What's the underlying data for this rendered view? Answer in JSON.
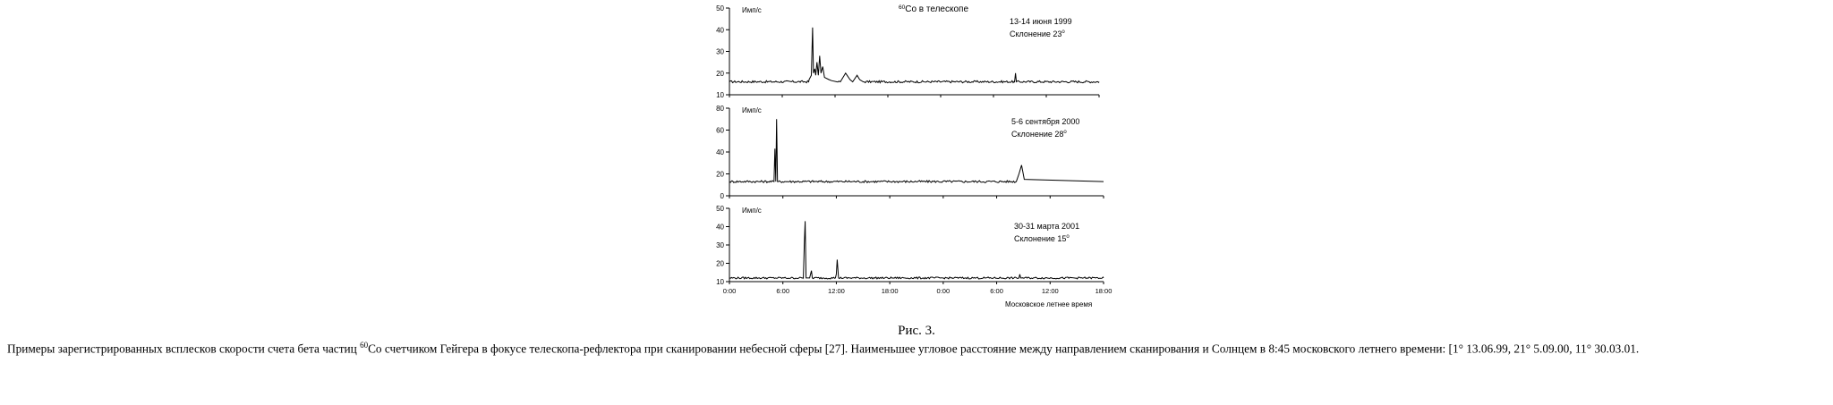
{
  "figure": {
    "super_title_sup": "60",
    "super_title": "Co в телескопе",
    "x_ticks": [
      "0:00",
      "6:00",
      "12:00",
      "18:00",
      "0:00",
      "6:00",
      "12:00",
      "18:00"
    ],
    "x_axis_label": "Московское летнее время",
    "caption_label": "Рис. 3.",
    "caption_before_sup": "Примеры зарегистрированных всплесков скорости счета бета частиц ",
    "caption_sup": "60",
    "caption_after_sup": "Co счетчиком Гейгера в фокусе телескопа-рефлектора при сканировании небесной сферы [27]. Наименьшее угловое расстояние между направлением сканирования и Солнцем в 8:45 московского летнего времени: [1° 13.06.99, 21° 5.09.00, 11° 30.03.01."
  },
  "chart_data": [
    {
      "type": "line",
      "ylabel": "Имп/с",
      "date_label": "13-14 июня 1999",
      "decl_label": "Склонение 23",
      "decl_sup": "o",
      "ylim": [
        10,
        50
      ],
      "yticks": [
        10,
        20,
        30,
        40,
        50
      ],
      "xlim": [
        0,
        42
      ],
      "baseline": 16,
      "series": [
        {
          "x": [
            0,
            9,
            9.05,
            9.3,
            9.45,
            9.55,
            9.7,
            9.8,
            9.95,
            10.1,
            10.25,
            10.4,
            10.6,
            10.8,
            11.3,
            11.6,
            12.2,
            12.6,
            13.2,
            13.7,
            14.0,
            14.5,
            14.8,
            15.2,
            32.4,
            32.5,
            32.6,
            42
          ],
          "y": [
            16,
            16,
            17,
            19,
            41,
            20,
            22,
            19,
            25,
            19,
            28,
            20,
            23,
            18,
            17,
            16.5,
            16,
            16,
            20,
            17,
            16,
            19,
            17,
            16,
            16,
            20,
            16,
            16
          ]
        }
      ]
    },
    {
      "type": "line",
      "ylabel": "Имп/с",
      "date_label": "5-6 сентября 2000",
      "decl_label": "Склонение 28",
      "decl_sup": "o",
      "ylim": [
        0,
        80
      ],
      "yticks": [
        0,
        20,
        40,
        60,
        80
      ],
      "xlim": [
        0,
        42
      ],
      "baseline": 13,
      "series": [
        {
          "x": [
            0,
            5.0,
            5.1,
            5.2,
            5.3,
            5.4,
            5.5,
            32.2,
            32.5,
            32.8,
            33.1,
            42
          ],
          "y": [
            13,
            13,
            43,
            13,
            70,
            13,
            13,
            13,
            20,
            28,
            15,
            13
          ]
        }
      ]
    },
    {
      "type": "line",
      "ylabel": "Имп/с",
      "date_label": "30-31 марта 2001",
      "decl_label": "Склонение 15",
      "decl_sup": "o",
      "ylim": [
        10,
        50
      ],
      "yticks": [
        10,
        20,
        30,
        40,
        50
      ],
      "xlim": [
        0,
        42
      ],
      "baseline": 12,
      "series": [
        {
          "x": [
            0,
            8.3,
            8.4,
            8.5,
            8.6,
            8.7,
            9.0,
            9.2,
            9.3,
            11.9,
            12.0,
            12.1,
            12.25,
            32.5,
            32.6,
            32.7,
            42
          ],
          "y": [
            12,
            12,
            30,
            43,
            12,
            12,
            12,
            16,
            12,
            12,
            14,
            22,
            12,
            12,
            14,
            12,
            12
          ]
        }
      ]
    }
  ]
}
